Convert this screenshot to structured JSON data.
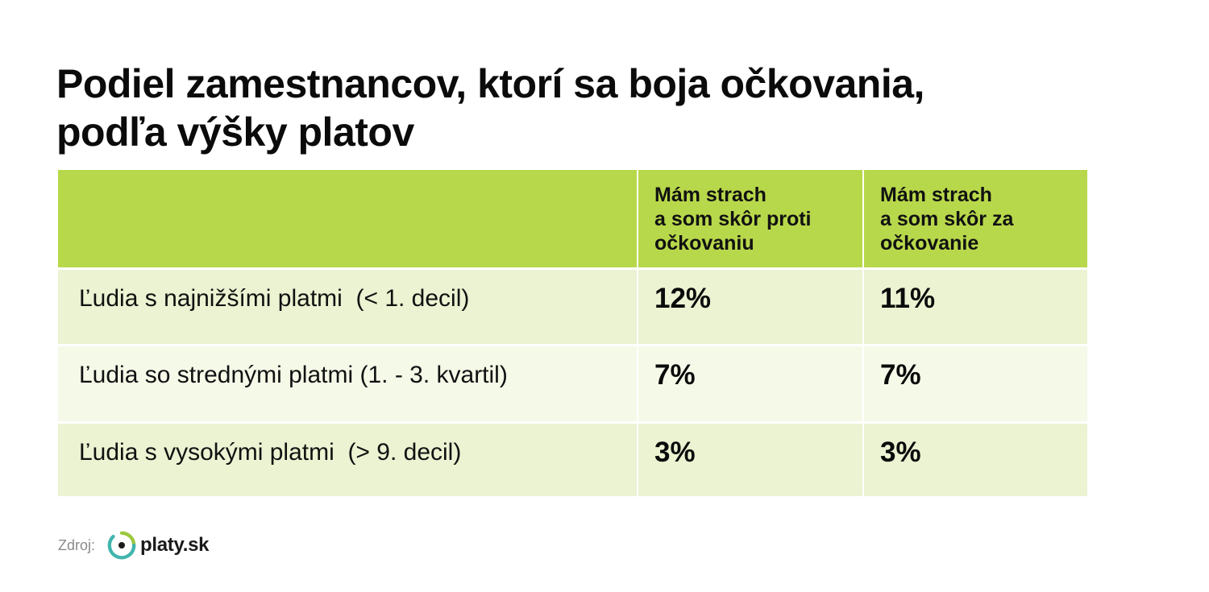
{
  "chart_data": {
    "type": "table",
    "title_lines": [
      "Podiel zamestnancov, ktorí sa boja očkovania,",
      "podľa výšky platov"
    ],
    "columns": [
      {
        "label_lines": [
          "Mám strach",
          "a som skôr proti",
          "očkovaniu"
        ]
      },
      {
        "label_lines": [
          "Mám strach",
          "a som skôr za",
          "očkovanie"
        ]
      }
    ],
    "rows": [
      {
        "label": "Ľudia s najnižšími platmi  (< 1. decil)",
        "values": [
          12,
          11
        ],
        "display": [
          "12%",
          "11%"
        ]
      },
      {
        "label": "Ľudia so strednými platmi (1. - 3. kvartil)",
        "values": [
          7,
          7
        ],
        "display": [
          "7%",
          "7%"
        ]
      },
      {
        "label": "Ľudia s vysokými platmi  (> 9. decil)",
        "values": [
          3,
          3
        ],
        "display": [
          "3%",
          "3%"
        ]
      }
    ],
    "unit": "%"
  },
  "source": {
    "label": "Zdroj:",
    "logo_text": "platy.sk"
  },
  "colors": {
    "header": "#b8d84b",
    "row_light": "#ebf3d2",
    "row_lighter": "#f5f9e8",
    "logo_green": "#9cc83c",
    "logo_teal": "#3fb5ad"
  }
}
